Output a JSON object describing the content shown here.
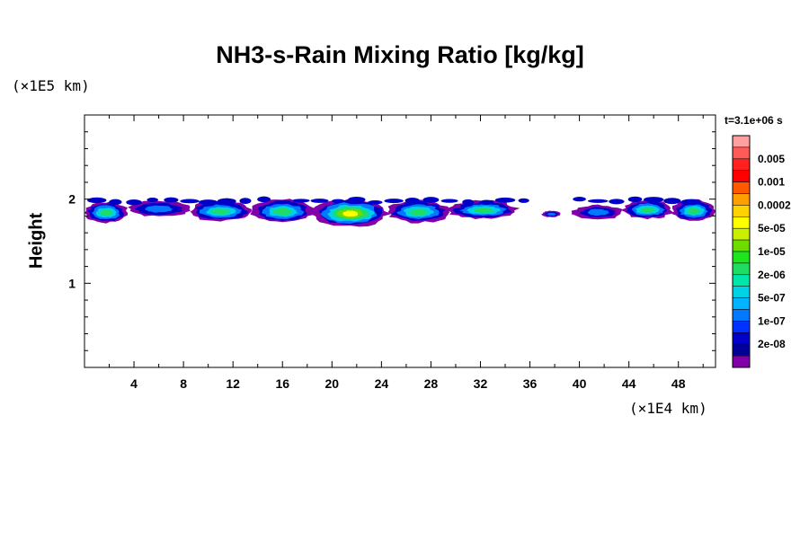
{
  "chart_data": {
    "type": "heatmap",
    "title": "NH3-s-Rain Mixing Ratio [kg/kg]",
    "xlabel": "",
    "ylabel": "Height",
    "x_units": "(×1E4 km)",
    "y_units": "(×1E5 km)",
    "time_label": "t=3.1e+06 s",
    "xlim": [
      0,
      51
    ],
    "ylim": [
      0,
      3
    ],
    "x_ticks": [
      4,
      8,
      12,
      16,
      20,
      24,
      28,
      32,
      36,
      40,
      44,
      48
    ],
    "y_ticks": [
      1,
      2
    ],
    "colorbar": {
      "levels": [
        {
          "label": "",
          "color": "#ffa0a0"
        },
        {
          "label": "0.005",
          "color": "#ff5a5a"
        },
        {
          "label": "",
          "color": "#ff2020"
        },
        {
          "label": "0.001",
          "color": "#ff0000"
        },
        {
          "label": "",
          "color": "#ff5a00"
        },
        {
          "label": "0.0002",
          "color": "#ffa000"
        },
        {
          "label": "",
          "color": "#ffd200"
        },
        {
          "label": "5e-05",
          "color": "#ffff00"
        },
        {
          "label": "",
          "color": "#c8f000"
        },
        {
          "label": "1e-05",
          "color": "#6edc00"
        },
        {
          "label": "",
          "color": "#1ee61e"
        },
        {
          "label": "2e-06",
          "color": "#1edc64"
        },
        {
          "label": "",
          "color": "#00e6aa"
        },
        {
          "label": "5e-07",
          "color": "#00d2e6"
        },
        {
          "label": "",
          "color": "#00b4ff"
        },
        {
          "label": "1e-07",
          "color": "#0078ff"
        },
        {
          "label": "",
          "color": "#0032ff"
        },
        {
          "label": "2e-08",
          "color": "#0000c8"
        },
        {
          "label": "",
          "color": "#000096"
        },
        {
          "label": "",
          "color": "#8200aa"
        }
      ]
    },
    "cloud_layer": {
      "description_level": "band near height 1.7-2.0 (x1E5 km)",
      "segments": [
        {
          "x0": 0,
          "x1": 3.5,
          "ybot": 1.7,
          "ytop": 1.97,
          "level": 1
        },
        {
          "x0": 3.5,
          "x1": 8.5,
          "ybot": 1.78,
          "ytop": 1.98,
          "level": 0
        },
        {
          "x0": 8.5,
          "x1": 13.5,
          "ybot": 1.72,
          "ytop": 1.98,
          "level": 1
        },
        {
          "x0": 13.5,
          "x1": 18.5,
          "ybot": 1.7,
          "ytop": 2.0,
          "level": 1
        },
        {
          "x0": 18.5,
          "x1": 24.5,
          "ybot": 1.65,
          "ytop": 2.0,
          "level": 2
        },
        {
          "x0": 24.5,
          "x1": 29.5,
          "ybot": 1.7,
          "ytop": 1.99,
          "level": 1
        },
        {
          "x0": 29.5,
          "x1": 35.0,
          "ybot": 1.75,
          "ytop": 1.98,
          "level": 1
        },
        {
          "x0": 37.0,
          "x1": 38.5,
          "ybot": 1.78,
          "ytop": 1.86,
          "level": 0
        },
        {
          "x0": 39.5,
          "x1": 43.5,
          "ybot": 1.75,
          "ytop": 1.93,
          "level": 0
        },
        {
          "x0": 43.5,
          "x1": 47.5,
          "ybot": 1.75,
          "ytop": 1.99,
          "level": 1
        },
        {
          "x0": 47.5,
          "x1": 51.0,
          "ybot": 1.72,
          "ytop": 1.99,
          "level": 1
        }
      ]
    }
  }
}
